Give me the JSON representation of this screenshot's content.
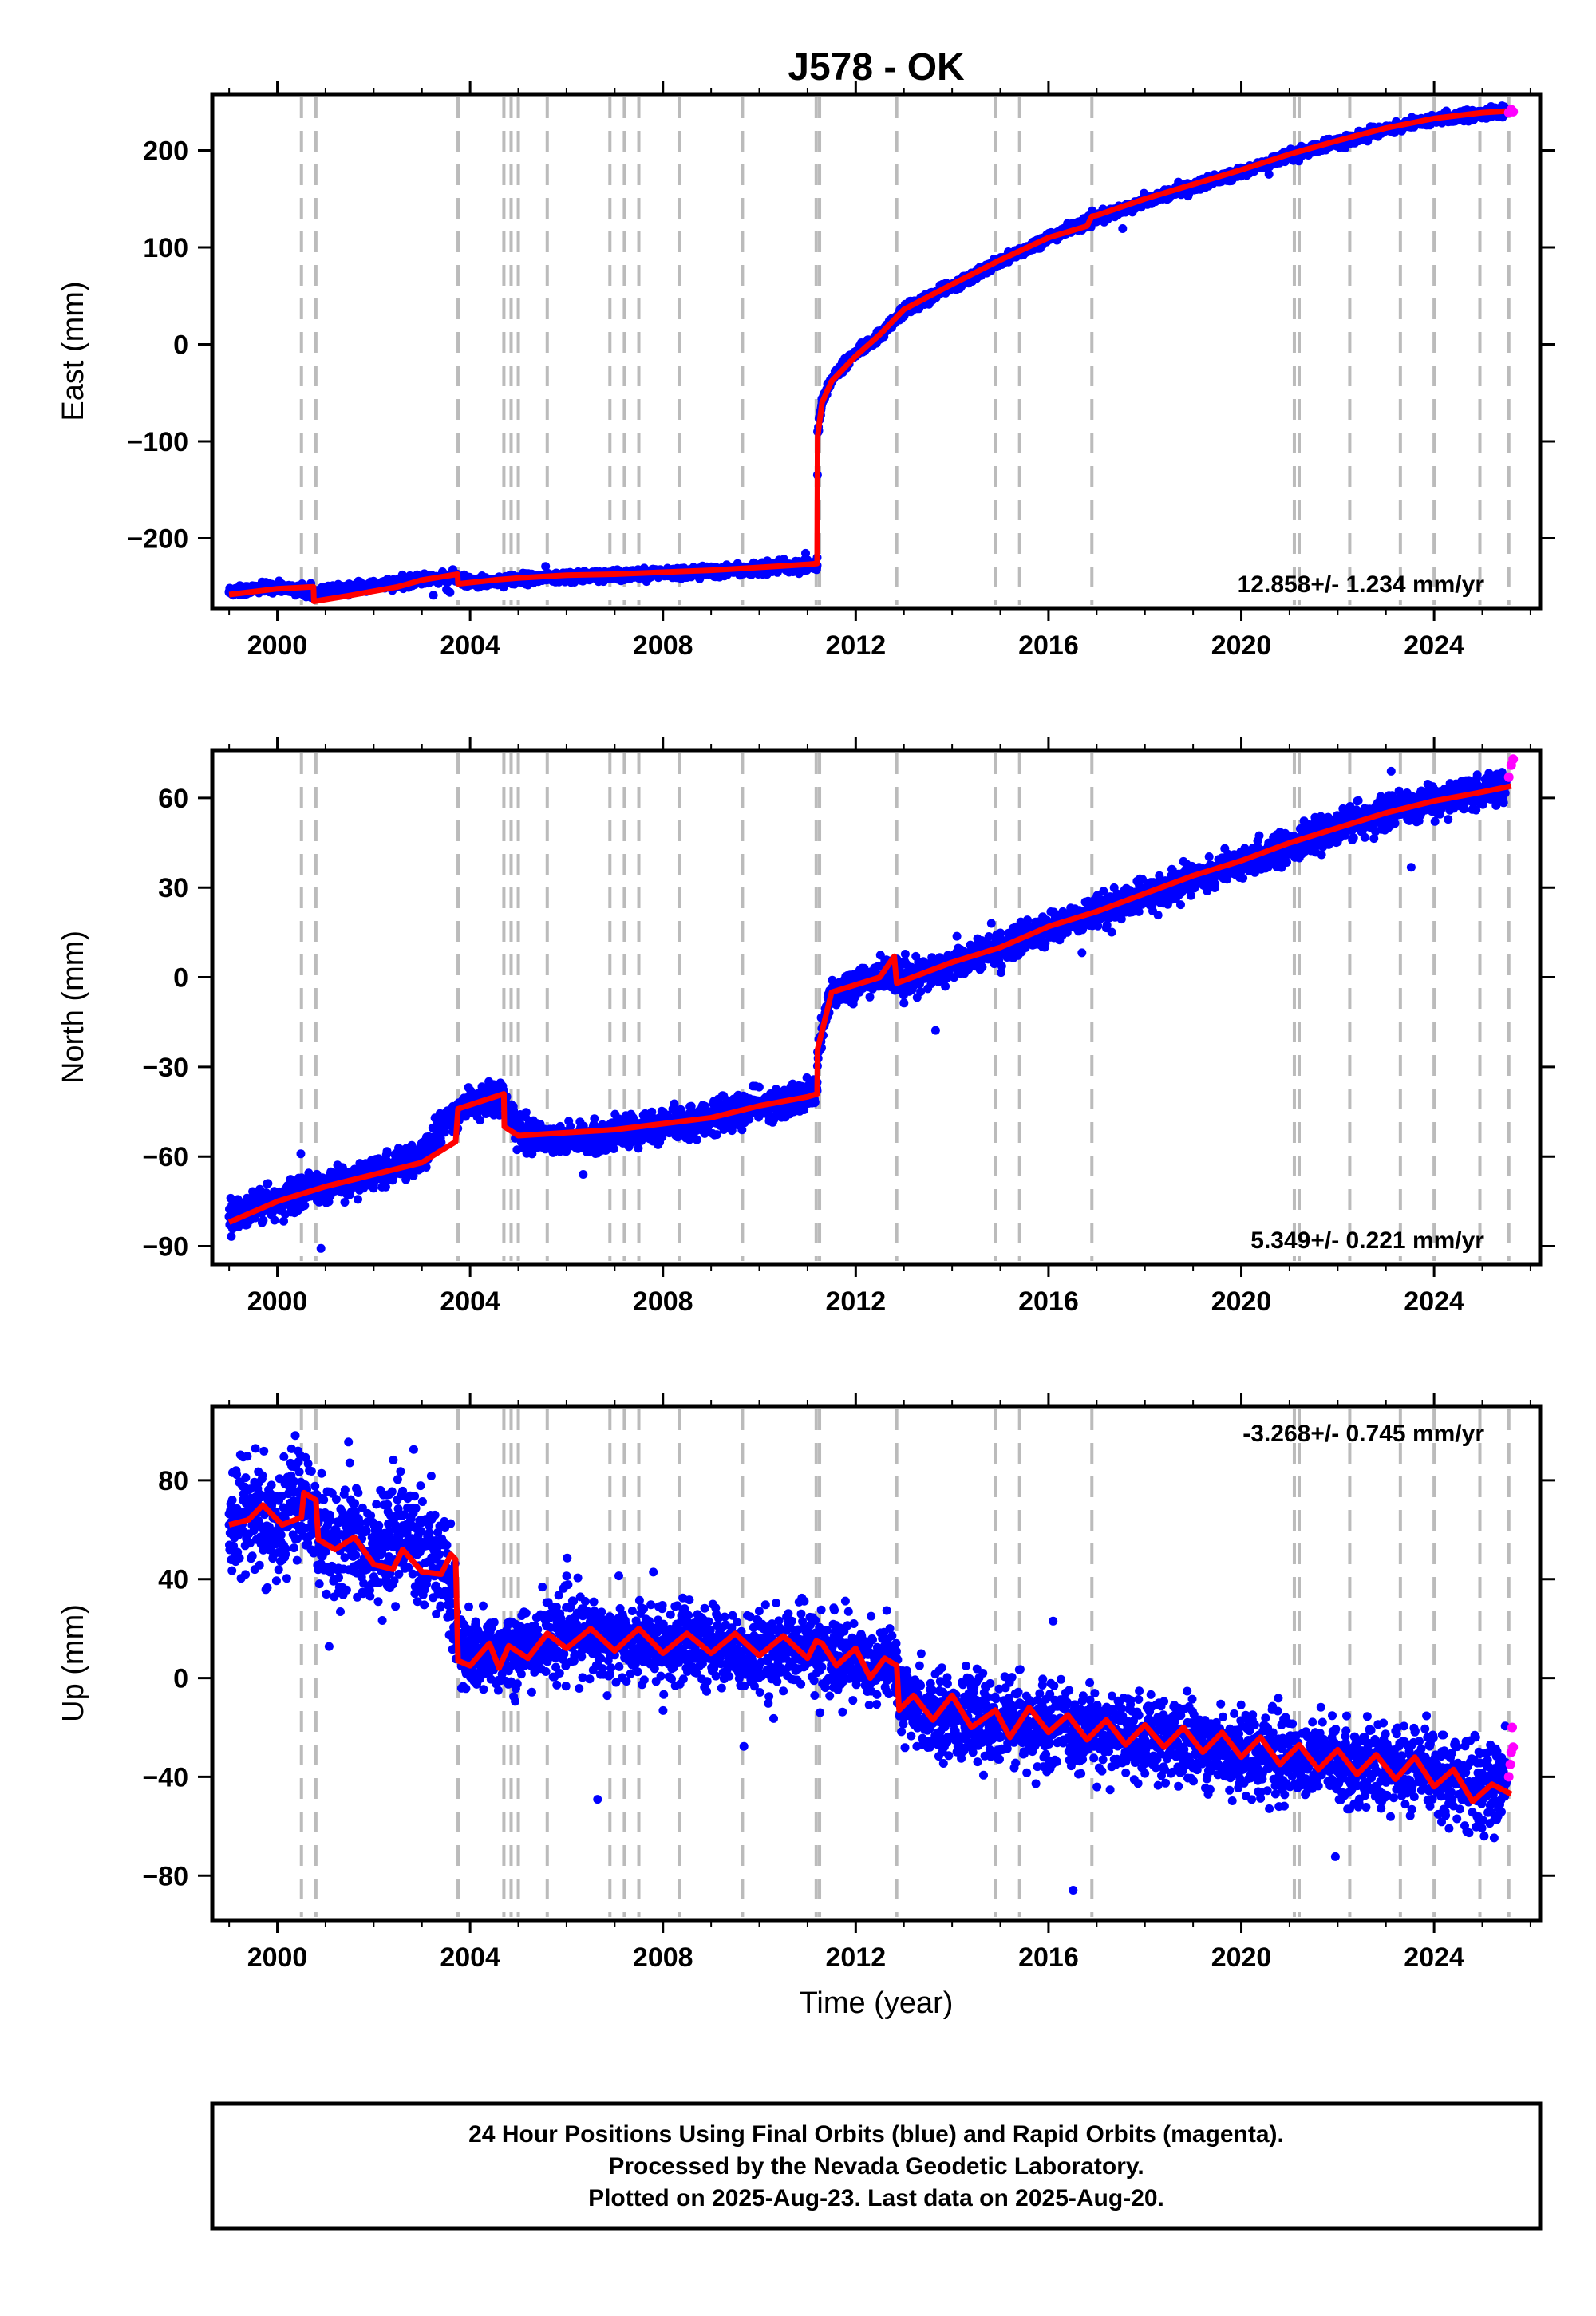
{
  "title": "J578 - OK",
  "x_axis_label": "Time (year)",
  "footer_lines": [
    "24 Hour Positions Using Final Orbits (blue) and Rapid Orbits (magenta).",
    "Processed by the Nevada Geodetic Laboratory.",
    "Plotted on 2025-Aug-23. Last data on 2025-Aug-20."
  ],
  "colors": {
    "final_orbits": "#0000ff",
    "rapid_orbits": "#ff00ff",
    "model": "#ff0000",
    "event_lines": "#bbbbbb"
  },
  "chart_data": [
    {
      "type": "scatter",
      "component": "east",
      "ylabel": "East (mm)",
      "xlim": [
        1998.65,
        2026.2
      ],
      "ylim": [
        -272,
        258
      ],
      "x_ticks": [
        2000,
        2004,
        2008,
        2012,
        2016,
        2020,
        2024
      ],
      "y_ticks": [
        -200,
        -100,
        0,
        100,
        200
      ],
      "y_tick_labels": [
        "−200",
        "−100",
        "0",
        "100",
        "200"
      ],
      "rate_label": "12.858+/- 1.234 mm/yr",
      "rate_position": "bottom-right",
      "event_lines_x": [
        2000.5,
        2000.8,
        2003.75,
        2004.7,
        2004.85,
        2005.0,
        2005.6,
        2006.9,
        2007.2,
        2007.5,
        2008.35,
        2009.65,
        2011.18,
        2011.25,
        2012.85,
        2014.9,
        2015.4,
        2016.9,
        2021.1,
        2021.2,
        2022.25,
        2023.3,
        2024.0,
        2024.95,
        2025.55
      ],
      "series": [
        {
          "name": "Final Orbits",
          "x": [
            1999.0,
            2000.0,
            2000.7,
            2001.5,
            2002.5,
            2003.0,
            2003.7,
            2004.0,
            2005.0,
            2006.0,
            2007.0,
            2008.0,
            2009.0,
            2010.0,
            2011.0,
            2011.2,
            2011.21,
            2011.3,
            2011.5,
            2012.0,
            2012.5,
            2013.0,
            2014.0,
            2015.0,
            2016.0,
            2017.0,
            2018.0,
            2019.0,
            2020.0,
            2021.0,
            2022.0,
            2023.0,
            2024.0,
            2025.0,
            2025.5
          ],
          "y": [
            -255,
            -250,
            -256,
            -252,
            -246,
            -243,
            -240,
            -246,
            -242,
            -240,
            -238,
            -236,
            -234,
            -231,
            -228,
            -228,
            -90,
            -60,
            -35,
            -10,
            10,
            35,
            60,
            85,
            110,
            130,
            148,
            163,
            177,
            195,
            208,
            222,
            232,
            238,
            240
          ]
        },
        {
          "name": "Rapid Orbits",
          "x": [
            2025.55,
            2025.6,
            2025.64
          ],
          "y": [
            239,
            242,
            240
          ]
        }
      ],
      "model_line": {
        "x": [
          1999.0,
          2000.0,
          2000.75,
          2000.76,
          2001.5,
          2002.5,
          2003.0,
          2003.74,
          2003.75,
          2004.5,
          2005.0,
          2006.0,
          2007.0,
          2008.0,
          2009.0,
          2010.0,
          2011.0,
          2011.2,
          2011.21,
          2011.3,
          2011.5,
          2012.0,
          2012.5,
          2013.0,
          2014.0,
          2015.0,
          2016.0,
          2016.8,
          2016.9,
          2017.0,
          2018.0,
          2019.0,
          2020.0,
          2021.0,
          2022.0,
          2023.0,
          2024.0,
          2025.0,
          2025.6
        ],
        "y": [
          -258,
          -252,
          -250,
          -265,
          -259,
          -250,
          -243,
          -237,
          -247,
          -243,
          -241,
          -238,
          -237,
          -235,
          -233,
          -230,
          -227,
          -226,
          -95,
          -60,
          -38,
          -12,
          10,
          36,
          62,
          87,
          110,
          122,
          132,
          133,
          150,
          165,
          180,
          196,
          210,
          223,
          233,
          239,
          241
        ]
      }
    },
    {
      "type": "scatter",
      "component": "north",
      "ylabel": "North (mm)",
      "xlim": [
        1998.65,
        2026.2
      ],
      "ylim": [
        -96,
        76
      ],
      "x_ticks": [
        2000,
        2004,
        2008,
        2012,
        2016,
        2020,
        2024
      ],
      "y_ticks": [
        -90,
        -60,
        -30,
        0,
        30,
        60
      ],
      "y_tick_labels": [
        "−90",
        "−60",
        "−30",
        "0",
        "30",
        "60"
      ],
      "rate_label": "5.349+/- 0.221 mm/yr",
      "rate_position": "bottom-right",
      "event_lines_x": [
        2000.5,
        2000.8,
        2003.75,
        2004.7,
        2004.85,
        2005.0,
        2005.6,
        2006.9,
        2007.2,
        2007.5,
        2008.35,
        2009.65,
        2011.18,
        2011.25,
        2012.85,
        2014.9,
        2015.4,
        2016.9,
        2021.1,
        2021.2,
        2022.25,
        2023.3,
        2024.0,
        2024.95,
        2025.55
      ],
      "series": [
        {
          "name": "Final Orbits",
          "x": [
            1999.0,
            2000.0,
            2001.0,
            2002.0,
            2003.0,
            2003.5,
            2004.0,
            2004.7,
            2005.0,
            2006.0,
            2007.0,
            2008.0,
            2009.0,
            2010.0,
            2011.0,
            2011.2,
            2011.21,
            2011.5,
            2012.0,
            2012.8,
            2013.0,
            2014.0,
            2015.0,
            2016.0,
            2017.0,
            2018.0,
            2019.0,
            2020.0,
            2021.0,
            2022.0,
            2023.0,
            2024.0,
            2025.0,
            2025.5
          ],
          "y": [
            -80,
            -75,
            -70,
            -66,
            -60,
            -48,
            -42,
            -40,
            -52,
            -55,
            -52,
            -50,
            -47,
            -43,
            -40,
            -38,
            -25,
            -5,
            -2,
            2,
            -2,
            5,
            10,
            16,
            22,
            27,
            33,
            38,
            44,
            50,
            55,
            59,
            62,
            64
          ]
        },
        {
          "name": "Rapid Orbits",
          "x": [
            2025.55,
            2025.6,
            2025.64
          ],
          "y": [
            67,
            71,
            73
          ]
        }
      ],
      "model_line": {
        "x": [
          1999.0,
          2000.0,
          2001.0,
          2002.0,
          2003.0,
          2003.7,
          2003.75,
          2004.7,
          2004.71,
          2005.0,
          2006.0,
          2007.0,
          2008.0,
          2009.0,
          2010.0,
          2011.0,
          2011.2,
          2011.21,
          2011.5,
          2012.5,
          2012.8,
          2012.85,
          2014.0,
          2015.0,
          2016.0,
          2017.0,
          2018.0,
          2019.0,
          2020.0,
          2021.0,
          2022.0,
          2023.0,
          2024.0,
          2025.0,
          2025.6
        ],
        "y": [
          -82,
          -75,
          -70,
          -66,
          -62,
          -55,
          -44,
          -39,
          -50,
          -53,
          -52,
          -51,
          -49,
          -47,
          -43,
          -40,
          -39,
          -24,
          -5,
          0,
          7,
          -2,
          5,
          10,
          17,
          22,
          28,
          34,
          39,
          45,
          50,
          55,
          59,
          62,
          64
        ]
      }
    },
    {
      "type": "scatter",
      "component": "up",
      "ylabel": "Up (mm)",
      "xlim": [
        1998.65,
        2026.2
      ],
      "ylim": [
        -98,
        110
      ],
      "x_ticks": [
        2000,
        2004,
        2008,
        2012,
        2016,
        2020,
        2024
      ],
      "y_ticks": [
        -80,
        -40,
        0,
        40,
        80
      ],
      "y_tick_labels": [
        "−80",
        "−40",
        "0",
        "40",
        "80"
      ],
      "rate_label": "-3.268+/- 0.745 mm/yr",
      "rate_position": "top-right",
      "event_lines_x": [
        2000.5,
        2000.8,
        2003.75,
        2004.7,
        2004.85,
        2005.0,
        2005.6,
        2006.9,
        2007.2,
        2007.5,
        2008.35,
        2009.65,
        2011.18,
        2011.25,
        2012.85,
        2014.9,
        2015.4,
        2016.9,
        2021.1,
        2021.2,
        2022.25,
        2023.3,
        2024.0,
        2024.95,
        2025.55
      ],
      "series": [
        {
          "name": "Final Orbits",
          "x": [
            1999.0,
            1999.5,
            2000.0,
            2000.5,
            2001.0,
            2001.5,
            2002.0,
            2002.5,
            2003.0,
            2003.5,
            2003.8,
            2004.0,
            2005.0,
            2006.0,
            2007.0,
            2008.0,
            2009.0,
            2010.0,
            2011.0,
            2012.0,
            2012.8,
            2013.0,
            2014.0,
            2015.0,
            2016.0,
            2017.0,
            2018.0,
            2019.0,
            2020.0,
            2021.0,
            2022.0,
            2023.0,
            2024.0,
            2025.0,
            2025.5
          ],
          "y": [
            62,
            70,
            60,
            75,
            55,
            60,
            48,
            58,
            55,
            45,
            10,
            8,
            12,
            18,
            15,
            14,
            12,
            10,
            12,
            8,
            5,
            -12,
            -15,
            -18,
            -20,
            -22,
            -25,
            -26,
            -30,
            -32,
            -34,
            -36,
            -38,
            -45,
            -42
          ]
        },
        {
          "name": "Rapid Orbits",
          "x": [
            2025.55,
            2025.58,
            2025.6,
            2025.62,
            2025.64
          ],
          "y": [
            -40,
            -35,
            -30,
            -20,
            -28
          ]
        }
      ],
      "model_line": {
        "x": [
          1999.0,
          1999.4,
          1999.7,
          2000.1,
          2000.5,
          2000.55,
          2000.8,
          2000.85,
          2001.2,
          2001.6,
          2002.0,
          2002.4,
          2002.6,
          2003.0,
          2003.4,
          2003.6,
          2003.7,
          2003.75,
          2004.0,
          2004.4,
          2004.6,
          2004.8,
          2005.2,
          2005.6,
          2006.0,
          2006.5,
          2007.0,
          2007.5,
          2008.0,
          2008.5,
          2009.0,
          2009.5,
          2010.0,
          2010.5,
          2011.0,
          2011.18,
          2011.3,
          2011.6,
          2012.0,
          2012.3,
          2012.6,
          2012.85,
          2012.9,
          2013.2,
          2013.6,
          2014.0,
          2014.4,
          2014.9,
          2015.2,
          2015.6,
          2016.0,
          2016.4,
          2016.8,
          2017.2,
          2017.6,
          2018.0,
          2018.4,
          2018.8,
          2019.2,
          2019.6,
          2020.0,
          2020.4,
          2020.8,
          2021.2,
          2021.6,
          2022.0,
          2022.4,
          2022.8,
          2023.2,
          2023.6,
          2024.0,
          2024.4,
          2024.8,
          2025.2,
          2025.6
        ],
        "y": [
          62,
          64,
          70,
          62,
          65,
          75,
          72,
          56,
          52,
          57,
          46,
          44,
          52,
          43,
          42,
          50,
          48,
          7,
          5,
          14,
          4,
          13,
          8,
          18,
          12,
          20,
          11,
          20,
          10,
          18,
          10,
          18,
          9,
          17,
          8,
          15,
          14,
          5,
          12,
          0,
          8,
          5,
          -13,
          -7,
          -17,
          -7,
          -20,
          -13,
          -24,
          -12,
          -22,
          -15,
          -25,
          -17,
          -27,
          -19,
          -28,
          -20,
          -30,
          -22,
          -32,
          -24,
          -35,
          -27,
          -37,
          -29,
          -39,
          -31,
          -41,
          -32,
          -44,
          -37,
          -50,
          -43,
          -47
        ]
      }
    }
  ]
}
